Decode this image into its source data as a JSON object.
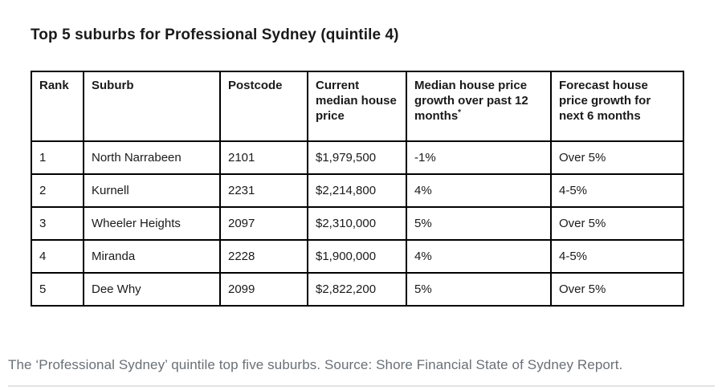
{
  "title": "Top 5 suburbs for Professional Sydney (quintile 4)",
  "table": {
    "headers": [
      "Rank",
      "Suburb",
      "Postcode",
      "Current median house price",
      "Median house price growth over past 12 months*",
      "Forecast house price growth for next 6 months"
    ],
    "rows": [
      [
        "1",
        "North Narrabeen",
        "2101",
        "$1,979,500",
        "-1%",
        "Over 5%"
      ],
      [
        "2",
        "Kurnell",
        "2231",
        "$2,214,800",
        "4%",
        "4-5%"
      ],
      [
        "3",
        "Wheeler Heights",
        "2097",
        "$2,310,000",
        "5%",
        "Over 5%"
      ],
      [
        "4",
        "Miranda",
        "2228",
        "$1,900,000",
        "4%",
        "4-5%"
      ],
      [
        "5",
        "Dee Why",
        "2099",
        "$2,822,200",
        "5%",
        "Over 5%"
      ]
    ]
  },
  "caption": "The ‘Professional Sydney’ quintile top five suburbs. Source: Shore Financial State of Sydney Report.",
  "colors": {
    "table_border": "#000000",
    "title_text": "#1a1a1a",
    "caption_text": "#697077",
    "divider": "#e3e3e3",
    "background": "#ffffff"
  },
  "chart_data": {
    "type": "table",
    "title": "Top 5 suburbs for Professional Sydney (quintile 4)",
    "columns": [
      "Rank",
      "Suburb",
      "Postcode",
      "Current median house price",
      "Median house price growth over past 12 months*",
      "Forecast house price growth for next 6 months"
    ],
    "rows": [
      [
        "1",
        "North Narrabeen",
        "2101",
        "$1,979,500",
        "-1%",
        "Over 5%"
      ],
      [
        "2",
        "Kurnell",
        "2231",
        "$2,214,800",
        "4%",
        "4-5%"
      ],
      [
        "3",
        "Wheeler Heights",
        "2097",
        "$2,310,000",
        "5%",
        "Over 5%"
      ],
      [
        "4",
        "Miranda",
        "2228",
        "$1,900,000",
        "4%",
        "4-5%"
      ],
      [
        "5",
        "Dee Why",
        "2099",
        "$2,822,200",
        "5%",
        "Over 5%"
      ]
    ]
  }
}
